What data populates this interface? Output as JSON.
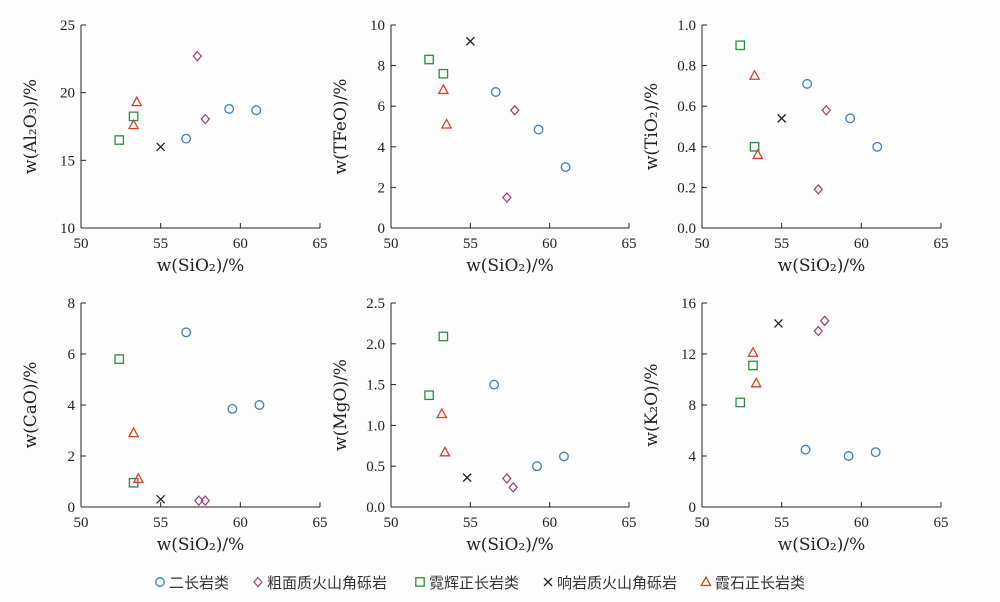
{
  "chart_data": {
    "type": "scatter",
    "legend": {
      "placement": "bottom",
      "entries": [
        {
          "key": "s1",
          "label": "二长岩类",
          "marker": "circle",
          "color": "#3a7fc1"
        },
        {
          "key": "s2",
          "label": "粗面质火山角砾岩",
          "marker": "diamond",
          "color": "#9b4a7a"
        },
        {
          "key": "s3",
          "label": "霓辉正长岩类",
          "marker": "square",
          "color": "#2e8b3e"
        },
        {
          "key": "s4",
          "label": "响岩质火山角砾岩",
          "marker": "x",
          "color": "#222222"
        },
        {
          "key": "s5",
          "label": "霞石正长岩类",
          "marker": "triangle",
          "color": "#d9402a"
        }
      ]
    },
    "panels": [
      {
        "xlabel": "w(SiO₂)/%",
        "ylabel": "w(Al₂O₃)/%",
        "xlim": [
          50,
          65
        ],
        "ylim": [
          10,
          25
        ],
        "xticks": [
          "50",
          "55",
          "60",
          "65"
        ],
        "yticks": [
          "10",
          "15",
          "20",
          "25"
        ],
        "series": {
          "s1": [
            [
              56.6,
              16.6
            ],
            [
              59.3,
              18.8
            ],
            [
              61.0,
              18.7
            ]
          ],
          "s2": [
            [
              57.3,
              22.7
            ],
            [
              57.8,
              18.05
            ]
          ],
          "s3": [
            [
              52.4,
              16.5
            ],
            [
              53.3,
              18.25
            ]
          ],
          "s4": [
            [
              55.0,
              16.0
            ]
          ],
          "s5": [
            [
              53.3,
              17.6
            ],
            [
              53.5,
              19.3
            ]
          ]
        }
      },
      {
        "xlabel": "w(SiO₂)/%",
        "ylabel": "w(TFeO)/%",
        "xlim": [
          50,
          65
        ],
        "ylim": [
          0,
          10
        ],
        "xticks": [
          "50",
          "55",
          "60",
          "65"
        ],
        "yticks": [
          "0",
          "2",
          "4",
          "6",
          "8",
          "10"
        ],
        "series": {
          "s1": [
            [
              56.6,
              6.7
            ],
            [
              59.3,
              4.85
            ],
            [
              61.0,
              3.0
            ]
          ],
          "s2": [
            [
              57.3,
              1.5
            ],
            [
              57.8,
              5.8
            ]
          ],
          "s3": [
            [
              52.4,
              8.3
            ],
            [
              53.3,
              7.6
            ]
          ],
          "s4": [
            [
              55.0,
              9.2
            ]
          ],
          "s5": [
            [
              53.3,
              6.8
            ],
            [
              53.5,
              5.1
            ]
          ]
        }
      },
      {
        "xlabel": "w(SiO₂)/%",
        "ylabel": "w(TiO₂)/%",
        "xlim": [
          50,
          65
        ],
        "ylim": [
          0,
          1.0
        ],
        "xticks": [
          "50",
          "55",
          "60",
          "65"
        ],
        "yticks": [
          "0.0",
          "0.2",
          "0.4",
          "0.6",
          "0.8",
          "1.0"
        ],
        "series": {
          "s1": [
            [
              56.6,
              0.71
            ],
            [
              59.3,
              0.54
            ],
            [
              61.0,
              0.4
            ]
          ],
          "s2": [
            [
              57.3,
              0.19
            ],
            [
              57.8,
              0.58
            ]
          ],
          "s3": [
            [
              52.4,
              0.9
            ],
            [
              53.3,
              0.4
            ]
          ],
          "s4": [
            [
              55.0,
              0.54
            ]
          ],
          "s5": [
            [
              53.3,
              0.75
            ],
            [
              53.5,
              0.36
            ]
          ]
        }
      },
      {
        "xlabel": "w(SiO₂)/%",
        "ylabel": "w(CaO)/%",
        "xlim": [
          50,
          65
        ],
        "ylim": [
          0,
          8
        ],
        "xticks": [
          "50",
          "55",
          "60",
          "65"
        ],
        "yticks": [
          "0",
          "2",
          "4",
          "6",
          "8"
        ],
        "series": {
          "s1": [
            [
              56.6,
              6.85
            ],
            [
              59.5,
              3.85
            ],
            [
              61.2,
              4.0
            ]
          ],
          "s2": [
            [
              57.4,
              0.25
            ],
            [
              57.8,
              0.25
            ]
          ],
          "s3": [
            [
              52.4,
              5.8
            ],
            [
              53.3,
              0.95
            ]
          ],
          "s4": [
            [
              55.0,
              0.3
            ]
          ],
          "s5": [
            [
              53.3,
              2.9
            ],
            [
              53.6,
              1.1
            ]
          ]
        }
      },
      {
        "xlabel": "w(SiO₂)/%",
        "ylabel": "w(MgO)/%",
        "xlim": [
          50,
          65
        ],
        "ylim": [
          0,
          2.5
        ],
        "xticks": [
          "50",
          "55",
          "60",
          "65"
        ],
        "yticks": [
          "0.0",
          "0.5",
          "1.0",
          "1.5",
          "2.0",
          "2.5"
        ],
        "series": {
          "s1": [
            [
              56.5,
              1.5
            ],
            [
              59.2,
              0.5
            ],
            [
              60.9,
              0.62
            ]
          ],
          "s2": [
            [
              57.3,
              0.35
            ],
            [
              57.7,
              0.24
            ]
          ],
          "s3": [
            [
              52.4,
              1.37
            ],
            [
              53.3,
              2.09
            ]
          ],
          "s4": [
            [
              54.8,
              0.36
            ]
          ],
          "s5": [
            [
              53.2,
              1.14
            ],
            [
              53.4,
              0.67
            ]
          ]
        }
      },
      {
        "xlabel": "w(SiO₂)/%",
        "ylabel": "w(K₂O)/%",
        "xlim": [
          50,
          65
        ],
        "ylim": [
          0,
          16
        ],
        "xticks": [
          "50",
          "55",
          "60",
          "65"
        ],
        "yticks": [
          "0",
          "4",
          "8",
          "12",
          "16"
        ],
        "series": {
          "s1": [
            [
              56.5,
              4.5
            ],
            [
              59.2,
              4.0
            ],
            [
              60.9,
              4.3
            ]
          ],
          "s2": [
            [
              57.3,
              13.8
            ],
            [
              57.7,
              14.6
            ]
          ],
          "s3": [
            [
              52.4,
              8.2
            ],
            [
              53.2,
              11.1
            ]
          ],
          "s4": [
            [
              54.8,
              14.4
            ]
          ],
          "s5": [
            [
              53.2,
              12.1
            ],
            [
              53.4,
              9.7
            ]
          ]
        }
      }
    ]
  }
}
